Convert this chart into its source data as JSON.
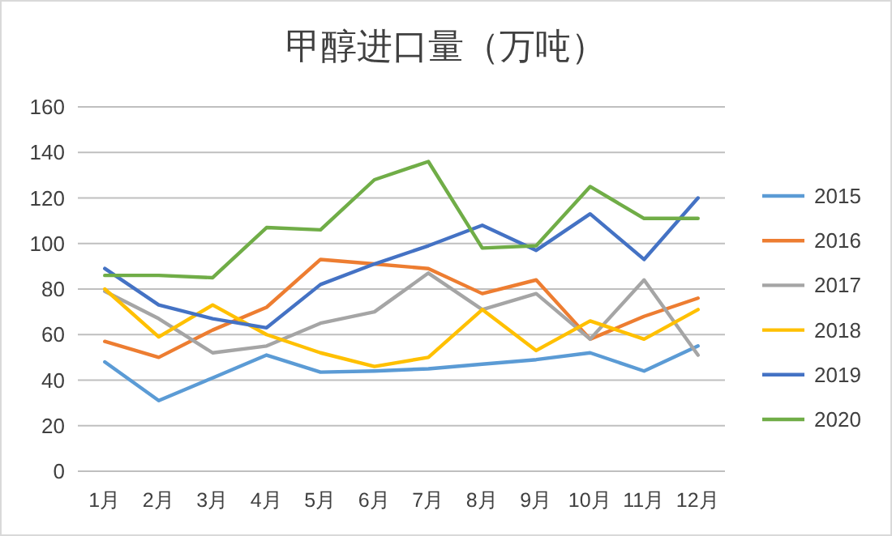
{
  "chart_data": {
    "type": "line",
    "title": "甲醇进口量（万吨）",
    "categories": [
      "1月",
      "2月",
      "3月",
      "4月",
      "5月",
      "6月",
      "7月",
      "8月",
      "9月",
      "10月",
      "11月",
      "12月"
    ],
    "series": [
      {
        "name": "2015",
        "color": "#5b9bd5",
        "values": [
          48,
          31,
          41,
          51,
          43.5,
          44,
          45,
          47,
          49,
          52,
          44,
          55
        ]
      },
      {
        "name": "2016",
        "color": "#ed7d31",
        "values": [
          57,
          50,
          62,
          72,
          93,
          91,
          89,
          78,
          84,
          58,
          68,
          76
        ]
      },
      {
        "name": "2017",
        "color": "#a5a5a5",
        "values": [
          79,
          67,
          52,
          55,
          65,
          70,
          87,
          71,
          78,
          58,
          84,
          51
        ]
      },
      {
        "name": "2018",
        "color": "#ffc000",
        "values": [
          80,
          59,
          73,
          60,
          52,
          46,
          50,
          71,
          53,
          66,
          58,
          71
        ]
      },
      {
        "name": "2019",
        "color": "#4472c4",
        "values": [
          89,
          73,
          67,
          63,
          82,
          91,
          99,
          108,
          97,
          113,
          93,
          120
        ]
      },
      {
        "name": "2020",
        "color": "#70ad47",
        "values": [
          86,
          86,
          85,
          107,
          106,
          128,
          136,
          98,
          99,
          125,
          111,
          111
        ]
      }
    ],
    "ylim": [
      0,
      160
    ],
    "yticks": [
      0,
      20,
      40,
      60,
      80,
      100,
      120,
      140,
      160
    ],
    "grid": "y",
    "legend": "right",
    "marker": "none",
    "line_style": "solid"
  }
}
